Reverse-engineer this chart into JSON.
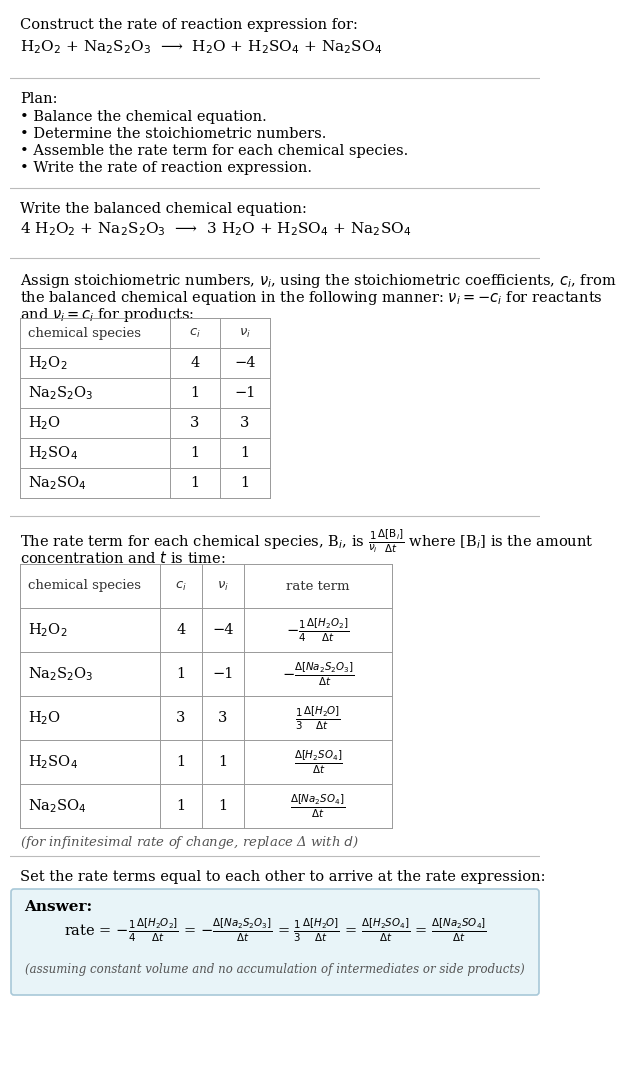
{
  "title_line1": "Construct the rate of reaction expression for:",
  "reaction_unbalanced": "H$_2$O$_2$ + Na$_2$S$_2$O$_3$  ⟶  H$_2$O + H$_2$SO$_4$ + Na$_2$SO$_4$",
  "plan_header": "Plan:",
  "plan_items": [
    "• Balance the chemical equation.",
    "• Determine the stoichiometric numbers.",
    "• Assemble the rate term for each chemical species.",
    "• Write the rate of reaction expression."
  ],
  "balanced_header": "Write the balanced chemical equation:",
  "reaction_balanced": "4 H$_2$O$_2$ + Na$_2$S$_2$O$_3$  ⟶  3 H$_2$O + H$_2$SO$_4$ + Na$_2$SO$_4$",
  "stoich_intro_line1": "Assign stoichiometric numbers, $\\nu_i$, using the stoichiometric coefficients, $c_i$, from",
  "stoich_intro_line2": "the balanced chemical equation in the following manner: $\\nu_i = -c_i$ for reactants",
  "stoich_intro_line3": "and $\\nu_i = c_i$ for products:",
  "table1_headers": [
    "chemical species",
    "$c_i$",
    "$\\nu_i$"
  ],
  "table1_data": [
    [
      "H$_2$O$_2$",
      "4",
      "−4"
    ],
    [
      "Na$_2$S$_2$O$_3$",
      "1",
      "−1"
    ],
    [
      "H$_2$O",
      "3",
      "3"
    ],
    [
      "H$_2$SO$_4$",
      "1",
      "1"
    ],
    [
      "Na$_2$SO$_4$",
      "1",
      "1"
    ]
  ],
  "rate_term_line1": "The rate term for each chemical species, B$_i$, is $\\frac{1}{\\nu_i}\\frac{\\Delta[\\mathrm{B}_i]}{\\Delta t}$ where [B$_i$] is the amount",
  "rate_term_line2": "concentration and $t$ is time:",
  "table2_headers": [
    "chemical species",
    "$c_i$",
    "$\\nu_i$",
    "rate term"
  ],
  "table2_data_col0": [
    "H$_2$O$_2$",
    "Na$_2$S$_2$O$_3$",
    "H$_2$O",
    "H$_2$SO$_4$",
    "Na$_2$SO$_4$"
  ],
  "table2_data_col1": [
    "4",
    "1",
    "3",
    "1",
    "1"
  ],
  "table2_data_col2": [
    "−4",
    "−1",
    "3",
    "1",
    "1"
  ],
  "table2_data_col3": [
    "$-\\frac{1}{4}\\frac{\\Delta[H_2O_2]}{\\Delta t}$",
    "$-\\frac{\\Delta[Na_2S_2O_3]}{\\Delta t}$",
    "$\\frac{1}{3}\\frac{\\Delta[H_2O]}{\\Delta t}$",
    "$\\frac{\\Delta[H_2SO_4]}{\\Delta t}$",
    "$\\frac{\\Delta[Na_2SO_4]}{\\Delta t}$"
  ],
  "infinitesimal_note": "(for infinitesimal rate of change, replace Δ with $d$)",
  "set_equal_text": "Set the rate terms equal to each other to arrive at the rate expression:",
  "answer_label": "Answer:",
  "answer_bg": "#e8f4f8",
  "answer_border": "#a8c8d8",
  "bg_color": "#ffffff",
  "text_color": "#000000",
  "gray_text": "#555555",
  "table_border": "#999999",
  "line_color": "#bbbbbb",
  "font_size": 10.5,
  "small_font": 9.5,
  "title_font_size": 11
}
